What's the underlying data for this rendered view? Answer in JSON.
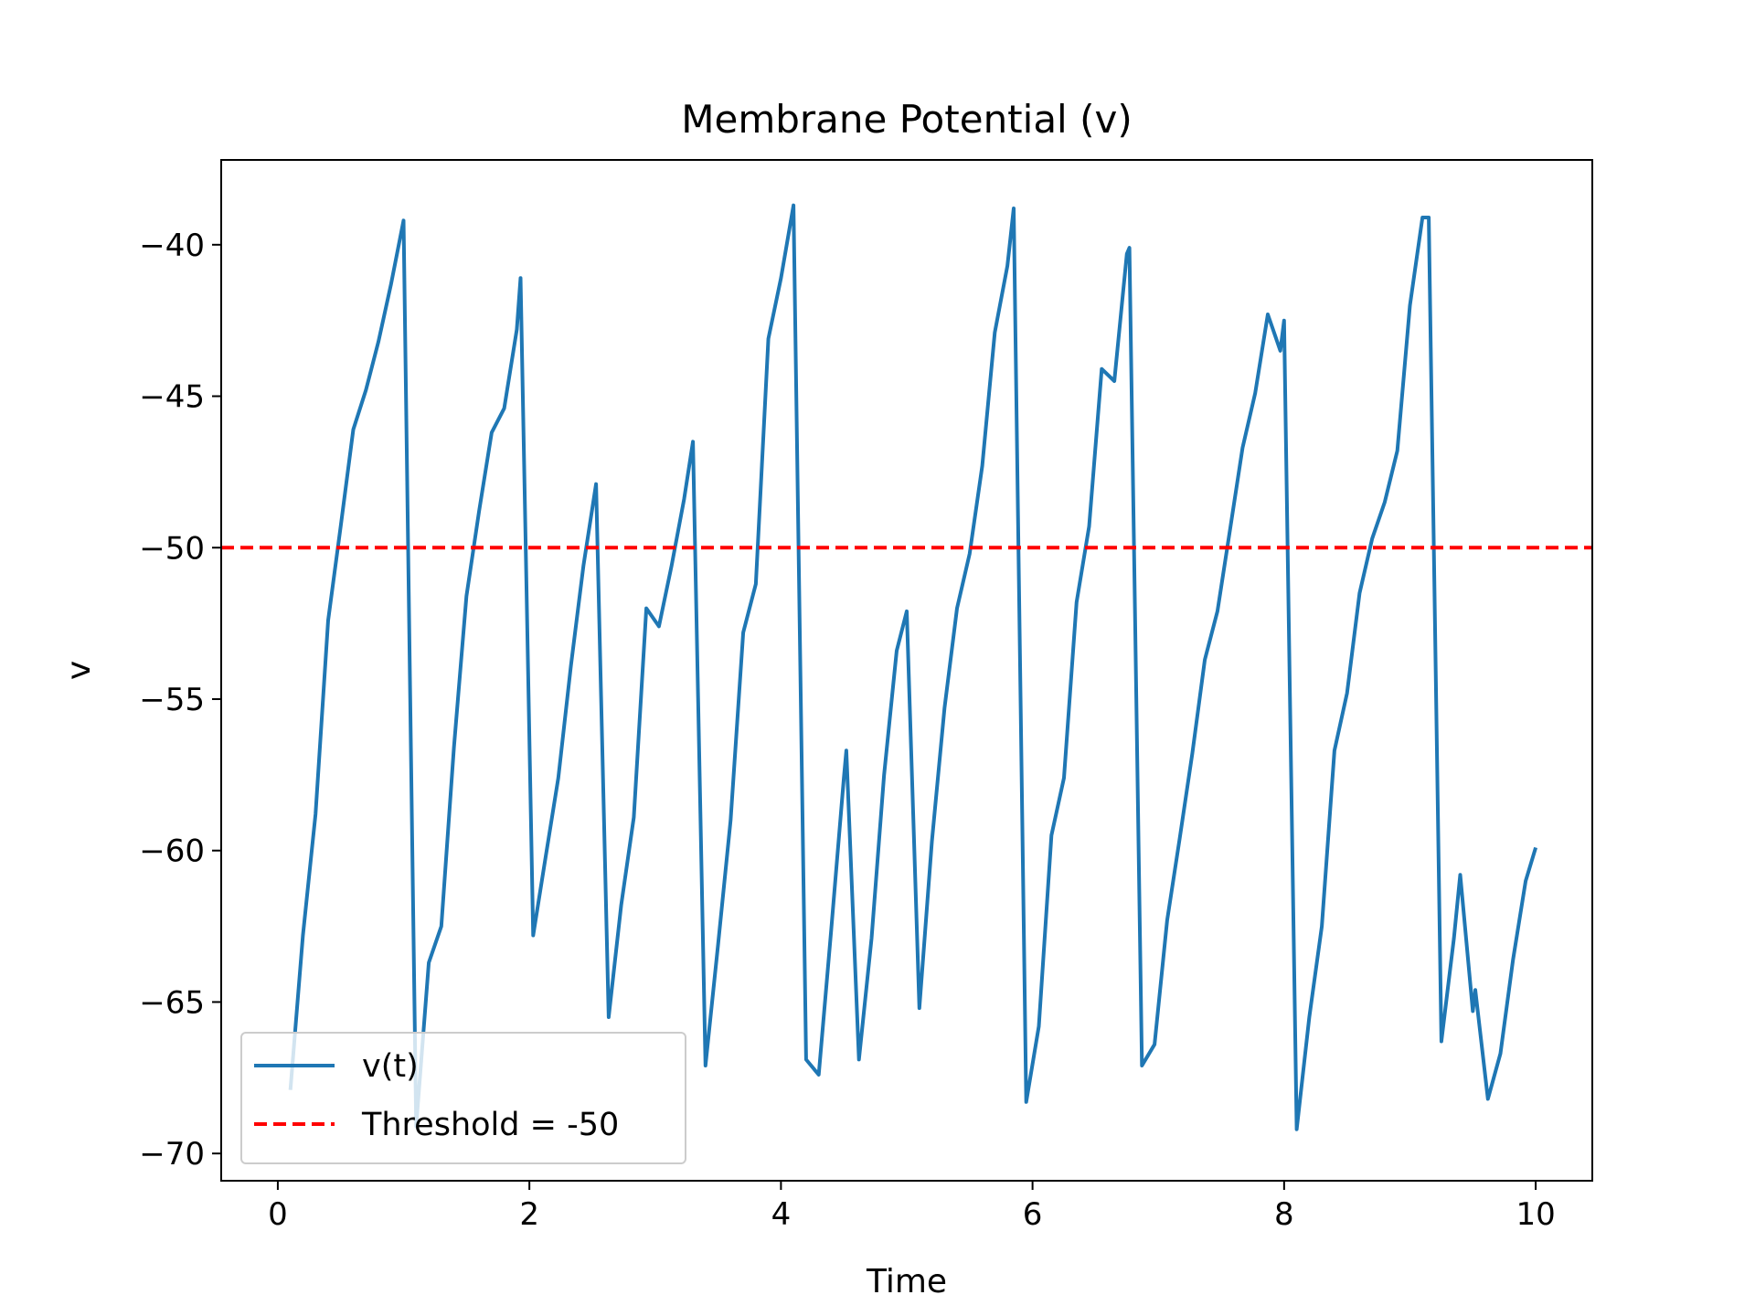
{
  "chart_data": {
    "type": "line",
    "title": "Membrane Potential (v)",
    "xlabel": "Time",
    "ylabel": "v",
    "xlim": [
      -0.45,
      10.45
    ],
    "ylim": [
      -70.9,
      -37.2
    ],
    "xticks": [
      0,
      2,
      4,
      6,
      8,
      10
    ],
    "yticks": [
      -40,
      -45,
      -50,
      -55,
      -60,
      -65,
      -70
    ],
    "xtick_labels": [
      "0",
      "2",
      "4",
      "6",
      "8",
      "10"
    ],
    "ytick_labels": [
      "−40",
      "−45",
      "−50",
      "−55",
      "−60",
      "−65",
      "−70"
    ],
    "grid": false,
    "legend_position": "lower-left",
    "series": [
      {
        "name": "v(t)",
        "color": "#1f77b4",
        "style": "solid",
        "x": [
          0.1,
          0.2,
          0.3,
          0.4,
          0.5,
          0.6,
          0.7,
          0.8,
          0.9,
          1.0,
          1.1,
          1.2,
          1.3,
          1.4,
          1.5,
          1.6,
          1.7,
          1.8,
          1.9,
          1.93,
          2.03,
          2.13,
          2.23,
          2.33,
          2.43,
          2.53,
          2.63,
          2.73,
          2.83,
          2.93,
          3.03,
          3.13,
          3.23,
          3.3,
          3.4,
          3.5,
          3.6,
          3.7,
          3.8,
          3.9,
          4.0,
          4.1,
          4.2,
          4.3,
          4.4,
          4.5,
          4.52,
          4.62,
          4.72,
          4.82,
          4.92,
          5.0,
          5.1,
          5.2,
          5.3,
          5.4,
          5.5,
          5.6,
          5.7,
          5.8,
          5.85,
          5.95,
          6.05,
          6.15,
          6.25,
          6.35,
          6.45,
          6.55,
          6.65,
          6.75,
          6.77,
          6.87,
          6.97,
          7.07,
          7.17,
          7.27,
          7.37,
          7.47,
          7.57,
          7.67,
          7.77,
          7.87,
          7.97,
          8.0,
          8.1,
          8.2,
          8.3,
          8.4,
          8.5,
          8.6,
          8.7,
          8.8,
          8.9,
          9.0,
          9.1,
          9.15,
          9.25,
          9.35,
          9.4,
          9.5,
          9.52,
          9.62,
          9.72,
          9.82,
          9.92,
          10.0
        ],
        "values": [
          -67.9,
          -62.8,
          -58.8,
          -52.4,
          -49.3,
          -46.1,
          -44.8,
          -43.2,
          -41.3,
          -39.2,
          -69.1,
          -63.7,
          -62.5,
          -56.6,
          -51.6,
          -48.8,
          -46.2,
          -45.4,
          -42.8,
          -41.1,
          -62.8,
          -60.2,
          -57.6,
          -53.9,
          -50.6,
          -47.9,
          -65.5,
          -61.8,
          -58.9,
          -52.0,
          -52.6,
          -50.6,
          -48.4,
          -46.5,
          -67.1,
          -63.1,
          -59.0,
          -52.8,
          -51.2,
          -43.1,
          -41.1,
          -38.7,
          -66.9,
          -67.4,
          -62.6,
          -57.6,
          -56.7,
          -66.9,
          -62.9,
          -57.5,
          -53.4,
          -52.1,
          -65.2,
          -59.7,
          -55.3,
          -52.0,
          -50.2,
          -47.3,
          -42.9,
          -40.7,
          -38.8,
          -68.3,
          -65.8,
          -59.5,
          -57.6,
          -51.8,
          -49.3,
          -44.1,
          -44.5,
          -40.3,
          -40.1,
          -67.1,
          -66.4,
          -62.3,
          -59.6,
          -56.8,
          -53.7,
          -52.1,
          -49.4,
          -46.7,
          -44.9,
          -42.3,
          -43.5,
          -42.5,
          -69.2,
          -65.5,
          -62.5,
          -56.7,
          -54.8,
          -51.5,
          -49.7,
          -48.5,
          -46.8,
          -42.0,
          -39.1,
          -39.1,
          -66.3,
          -62.9,
          -60.8,
          -65.3,
          -64.6,
          -68.2,
          -66.7,
          -63.6,
          -61.0,
          -59.9
        ]
      },
      {
        "name": "Threshold = -50",
        "color": "#ff0000",
        "style": "dashed",
        "constant_y": -50
      }
    ]
  }
}
